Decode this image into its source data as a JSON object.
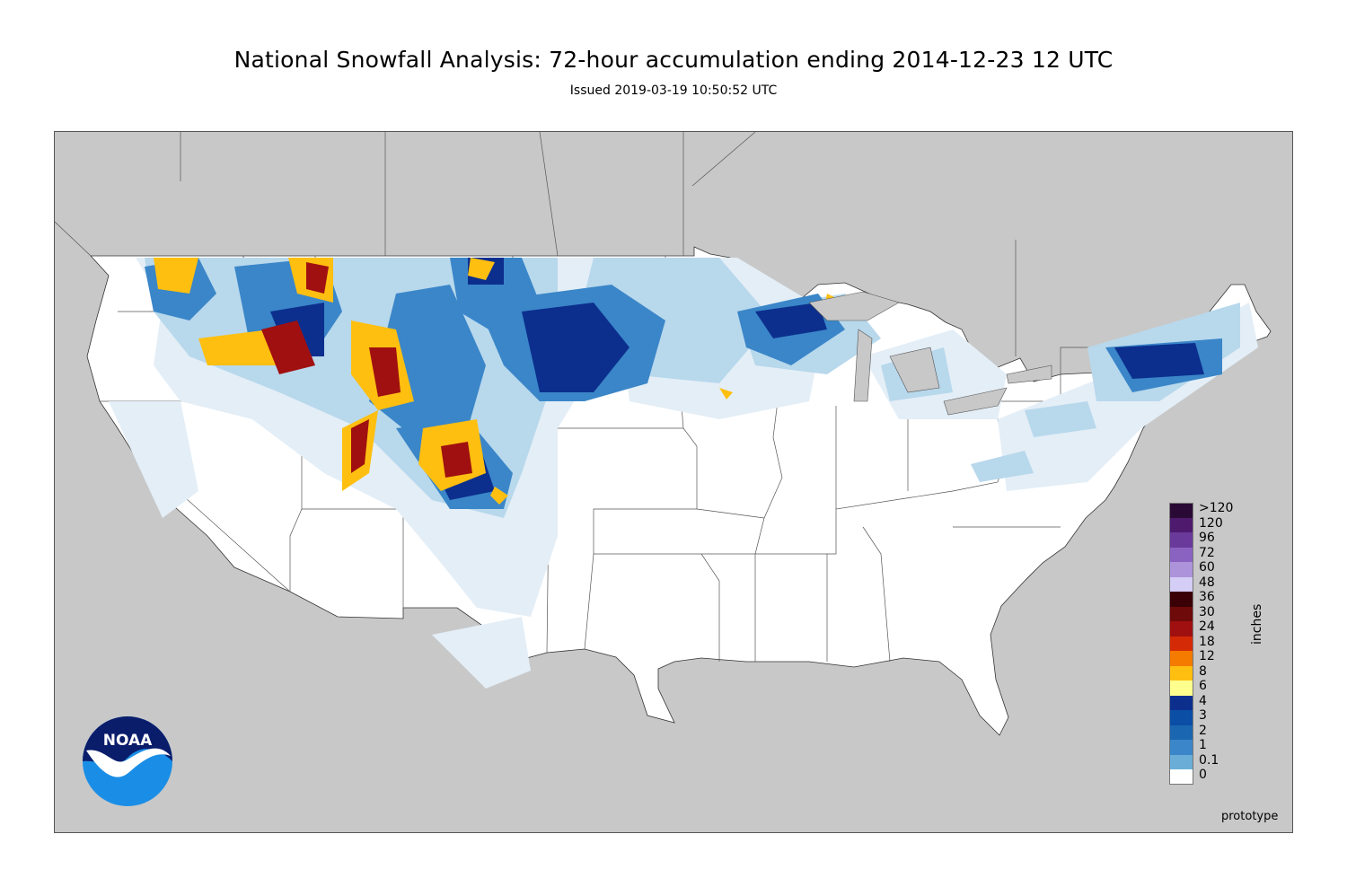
{
  "header": {
    "title": "National Snowfall Analysis: 72-hour accumulation ending 2014-12-23 12 UTC",
    "issued": "Issued 2019-03-19 10:50:52 UTC"
  },
  "legend": {
    "units": "inches",
    "entries": [
      {
        "label": ">120",
        "color": "#2a0a35"
      },
      {
        "label": "120",
        "color": "#4e1a6e"
      },
      {
        "label": "96",
        "color": "#6a3a9a"
      },
      {
        "label": "72",
        "color": "#8a62c0"
      },
      {
        "label": "60",
        "color": "#ad93da"
      },
      {
        "label": "48",
        "color": "#d4cdf5"
      },
      {
        "label": "36",
        "color": "#3a0005"
      },
      {
        "label": "30",
        "color": "#6e0a0a"
      },
      {
        "label": "24",
        "color": "#a01010"
      },
      {
        "label": "18",
        "color": "#d42a05"
      },
      {
        "label": "12",
        "color": "#f47a00"
      },
      {
        "label": "8",
        "color": "#ffbf10"
      },
      {
        "label": "6",
        "color": "#ffff8e"
      },
      {
        "label": "4",
        "color": "#0c2f8e"
      },
      {
        "label": "3",
        "color": "#0b4ea6"
      },
      {
        "label": "2",
        "color": "#1a66b0"
      },
      {
        "label": "1",
        "color": "#3a86c8"
      },
      {
        "label": "0.1",
        "color": "#6aaed8"
      },
      {
        "label": "0",
        "color": "#b8d8ec"
      }
    ],
    "zero_color": "#ffffff",
    "trace_color": "#e3eef7"
  },
  "map": {
    "land_color": "#ffffff",
    "outside_color": "#c8c8c8",
    "border_color": "#555555"
  },
  "logo": {
    "text": "NOAA"
  },
  "note": "prototype"
}
